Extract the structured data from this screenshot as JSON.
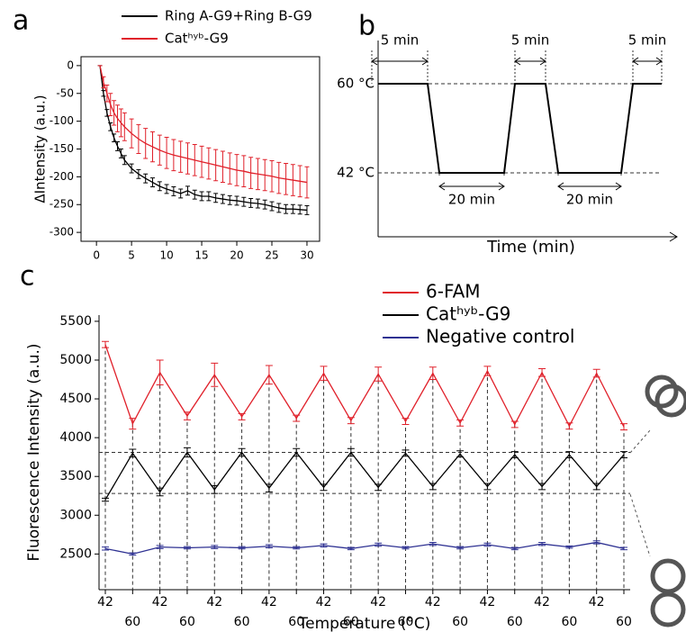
{
  "chart_data": [
    {
      "type": "line",
      "panel_label": "a",
      "ylabel": "ΔIntensity (a.u.)",
      "x": [
        0.5,
        1,
        1.5,
        2,
        2.5,
        3,
        3.5,
        4,
        5,
        6,
        7,
        8,
        9,
        10,
        11,
        12,
        13,
        14,
        15,
        16,
        17,
        18,
        19,
        20,
        21,
        22,
        23,
        24,
        25,
        26,
        27,
        28,
        29,
        30
      ],
      "xlim": [
        -2.2,
        31.8
      ],
      "xticks": [
        0,
        5,
        10,
        15,
        20,
        25,
        30
      ],
      "ylim": [
        -316,
        16
      ],
      "yticks": [
        0,
        -50,
        -100,
        -150,
        -200,
        -250,
        -300
      ],
      "series": [
        {
          "name": "Ring A-G9+Ring B-G9",
          "color": "#000000",
          "values": [
            0,
            -50,
            -85,
            -110,
            -130,
            -145,
            -158,
            -170,
            -185,
            -195,
            -203,
            -210,
            -217,
            -222,
            -226,
            -230,
            -225,
            -232,
            -235,
            -235,
            -238,
            -240,
            -242,
            -243,
            -245,
            -247,
            -248,
            -250,
            -253,
            -256,
            -258,
            -258,
            -259,
            -260
          ],
          "errors": [
            0,
            5,
            6,
            7,
            7,
            8,
            8,
            8,
            8,
            8,
            8,
            8,
            8,
            8,
            8,
            8,
            8,
            8,
            8,
            8,
            8,
            8,
            8,
            8,
            8,
            8,
            8,
            8,
            8,
            8,
            8,
            8,
            8,
            8
          ]
        },
        {
          "name": "Catʰʸᵇ-G9",
          "color": "#e0202a",
          "values": [
            0,
            -30,
            -50,
            -70,
            -85,
            -95,
            -103,
            -110,
            -122,
            -132,
            -140,
            -146,
            -152,
            -157,
            -161,
            -164,
            -167,
            -170,
            -173,
            -176,
            -179,
            -182,
            -185,
            -188,
            -190,
            -193,
            -195,
            -197,
            -199,
            -202,
            -204,
            -206,
            -208,
            -210
          ],
          "errors": [
            0,
            10,
            15,
            20,
            22,
            24,
            25,
            25,
            26,
            26,
            27,
            27,
            27,
            28,
            28,
            28,
            28,
            28,
            28,
            28,
            28,
            28,
            28,
            28,
            28,
            28,
            28,
            28,
            28,
            28,
            28,
            28,
            28,
            28
          ]
        }
      ]
    },
    {
      "type": "schematic",
      "panel_label": "b",
      "xlabel": "Time (min)",
      "yticks": [
        {
          "value": 60,
          "label": "60 °C"
        },
        {
          "value": 42,
          "label": "42 °C"
        }
      ],
      "annotations": [
        "5 min",
        "5 min",
        "5 min",
        "20 min",
        "20 min"
      ]
    },
    {
      "type": "line",
      "panel_label": "c",
      "ylabel": "Fluorescence Intensity (a.u.)",
      "xlabel": "Temperature (°C)",
      "categories": [
        "42",
        "60",
        "42",
        "60",
        "42",
        "60",
        "42",
        "60",
        "42",
        "60",
        "42",
        "60",
        "42",
        "60",
        "42",
        "60",
        "42",
        "60",
        "42",
        "60"
      ],
      "ylim": [
        2040,
        5580
      ],
      "yticks": [
        2500,
        3000,
        3500,
        4000,
        4500,
        5000,
        5500
      ],
      "reference_lines": [
        3810,
        3280
      ],
      "series": [
        {
          "name": "6-FAM",
          "color": "#e0202a",
          "values": [
            5200,
            4180,
            4840,
            4280,
            4810,
            4270,
            4810,
            4250,
            4830,
            4220,
            4820,
            4210,
            4830,
            4190,
            4860,
            4170,
            4840,
            4150,
            4830,
            4140
          ],
          "errors": [
            40,
            70,
            160,
            50,
            150,
            40,
            120,
            40,
            90,
            40,
            90,
            40,
            80,
            40,
            60,
            40,
            50,
            40,
            50,
            40
          ]
        },
        {
          "name": "Catʰʸᵇ-G9",
          "color": "#000000",
          "values": [
            3200,
            3800,
            3300,
            3810,
            3330,
            3810,
            3350,
            3810,
            3360,
            3810,
            3360,
            3800,
            3370,
            3790,
            3370,
            3780,
            3370,
            3780,
            3370,
            3780
          ],
          "errors": [
            20,
            50,
            50,
            60,
            50,
            50,
            50,
            50,
            40,
            50,
            40,
            40,
            40,
            40,
            40,
            40,
            40,
            40,
            40,
            40
          ]
        },
        {
          "name": "Negative control",
          "color": "#2e3192",
          "values": [
            2570,
            2500,
            2590,
            2580,
            2590,
            2580,
            2600,
            2580,
            2610,
            2570,
            2620,
            2580,
            2630,
            2580,
            2620,
            2570,
            2630,
            2590,
            2650,
            2570
          ],
          "errors": [
            20,
            15,
            20,
            15,
            20,
            15,
            20,
            15,
            20,
            15,
            20,
            15,
            20,
            15,
            20,
            15,
            20,
            15,
            20,
            15
          ]
        }
      ]
    }
  ]
}
